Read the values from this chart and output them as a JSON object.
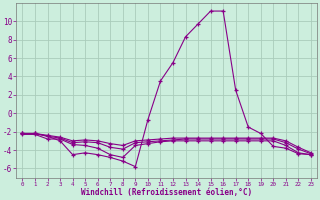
{
  "xlabel": "Windchill (Refroidissement éolien,°C)",
  "background_color": "#cceedd",
  "grid_color": "#aaccbb",
  "line_color": "#880088",
  "xlim": [
    -0.5,
    23.5
  ],
  "ylim": [
    -7,
    12
  ],
  "yticks": [
    -6,
    -4,
    -2,
    0,
    2,
    4,
    6,
    8,
    10
  ],
  "xticks": [
    0,
    1,
    2,
    3,
    4,
    5,
    6,
    7,
    8,
    9,
    10,
    11,
    12,
    13,
    14,
    15,
    16,
    17,
    18,
    19,
    20,
    21,
    22,
    23
  ],
  "series": [
    [
      -2.2,
      -2.2,
      -2.5,
      -3.0,
      -4.5,
      -4.3,
      -4.5,
      -4.8,
      -5.2,
      -5.8,
      -0.7,
      3.5,
      5.5,
      8.3,
      9.7,
      11.1,
      11.1,
      2.5,
      -1.5,
      -2.2,
      -3.6,
      -3.8,
      -4.4,
      -4.5
    ],
    [
      -2.3,
      -2.3,
      -2.8,
      -2.8,
      -3.4,
      -3.5,
      -3.8,
      -4.5,
      -4.8,
      -3.5,
      -3.3,
      -3.1,
      -3.0,
      -3.0,
      -3.0,
      -3.0,
      -3.0,
      -3.0,
      -3.0,
      -3.0,
      -3.0,
      -3.5,
      -4.3,
      -4.5
    ],
    [
      -2.2,
      -2.2,
      -2.5,
      -2.7,
      -3.2,
      -3.1,
      -3.2,
      -3.7,
      -3.9,
      -3.2,
      -3.1,
      -3.0,
      -2.9,
      -2.8,
      -2.8,
      -2.8,
      -2.8,
      -2.8,
      -2.8,
      -2.8,
      -2.8,
      -3.2,
      -3.9,
      -4.4
    ],
    [
      -2.2,
      -2.2,
      -2.4,
      -2.6,
      -3.0,
      -2.9,
      -3.0,
      -3.3,
      -3.5,
      -3.0,
      -2.9,
      -2.8,
      -2.7,
      -2.7,
      -2.7,
      -2.7,
      -2.7,
      -2.7,
      -2.7,
      -2.7,
      -2.7,
      -3.0,
      -3.7,
      -4.3
    ]
  ]
}
